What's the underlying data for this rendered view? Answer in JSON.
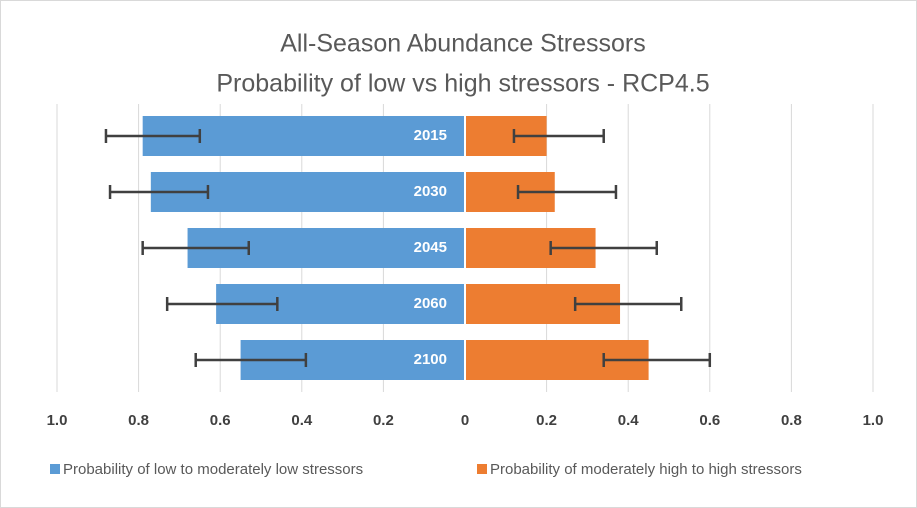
{
  "chart_data": {
    "type": "diverging_bar",
    "title": "All-Season Abundance Stressors",
    "subtitle": "Probability of low vs high stressors - RCP4.5",
    "categories": [
      "2015",
      "2030",
      "2045",
      "2060",
      "2100"
    ],
    "series": [
      {
        "name": "Probability of low to moderately low stressors",
        "color": "#5b9bd5",
        "values": [
          -0.79,
          -0.77,
          -0.68,
          -0.61,
          -0.55
        ],
        "errors": [
          [
            0.09,
            0.14
          ],
          [
            0.1,
            0.14
          ],
          [
            0.11,
            0.15
          ],
          [
            0.12,
            0.15
          ],
          [
            0.11,
            0.16
          ]
        ]
      },
      {
        "name": "Probability of moderately high to high stressors",
        "color": "#ed7d31",
        "values": [
          0.2,
          0.22,
          0.32,
          0.38,
          0.45
        ],
        "errors": [
          [
            0.08,
            0.14
          ],
          [
            0.09,
            0.15
          ],
          [
            0.11,
            0.15
          ],
          [
            0.11,
            0.15
          ],
          [
            0.11,
            0.15
          ]
        ]
      }
    ],
    "xlim": [
      -1,
      1
    ],
    "xticks": [
      {
        "value": -1,
        "label": "1.0"
      },
      {
        "value": -0.8,
        "label": "0.8"
      },
      {
        "value": -0.6,
        "label": "0.6"
      },
      {
        "value": -0.4,
        "label": "0.4"
      },
      {
        "value": -0.2,
        "label": "0.2"
      },
      0,
      0.2,
      0.4,
      0.6,
      0.8,
      {
        "value": 1,
        "label": "1.0"
      }
    ],
    "grid": true,
    "legend": "bottom"
  }
}
